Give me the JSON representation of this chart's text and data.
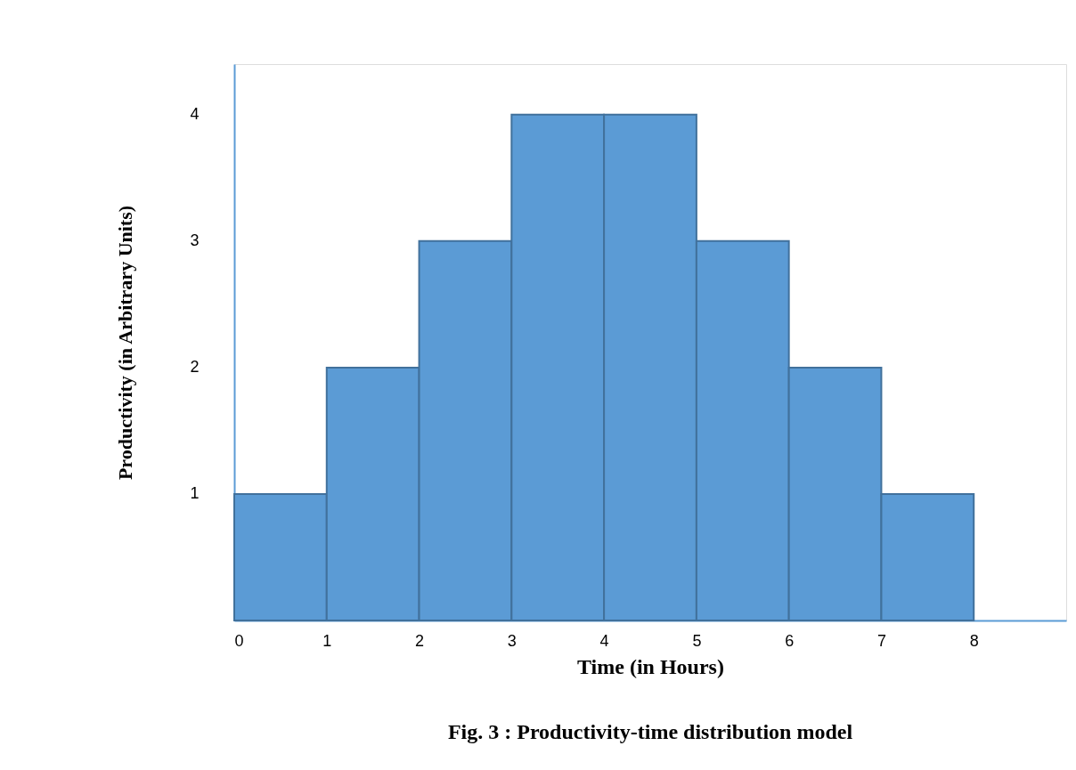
{
  "chart_data": {
    "type": "histogram",
    "title": "Fig. 3 : Productivity-time distribution model",
    "xlabel": "Time (in Hours)",
    "ylabel": "Productivity (in Arbitrary Units)",
    "bins": [
      0,
      1,
      2,
      3,
      4,
      5,
      6,
      7,
      8
    ],
    "values": [
      1,
      2,
      3,
      4,
      4,
      3,
      2,
      1
    ],
    "color": "#5b9bd5",
    "xlim": [
      0,
      9
    ],
    "ylim": [
      0,
      4.4
    ],
    "xticks": [
      0,
      1,
      2,
      3,
      4,
      5,
      6,
      7,
      8
    ],
    "yticks": [
      1,
      2,
      3,
      4
    ],
    "grid": false
  }
}
